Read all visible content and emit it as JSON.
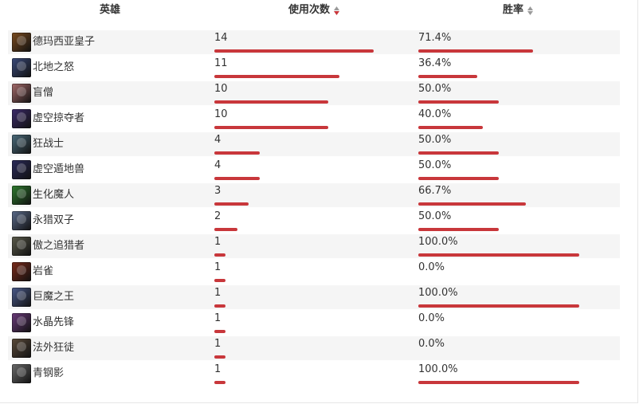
{
  "headers": {
    "hero": "英雄",
    "uses": "使用次数",
    "winrate": "胜率"
  },
  "sort": {
    "active_column": "uses",
    "active_color": "#c8373b",
    "inactive_color": "#9a9a9a"
  },
  "bar_color": "#c8373b",
  "scales": {
    "uses_max": 20,
    "winrate_max": 100
  },
  "rows": [
    {
      "hero": "德玛西亚皇子",
      "uses": "14",
      "winrate": "71.4%",
      "uses_value": 14,
      "winrate_value": 71.4,
      "avatar_icon": "jarvan-portrait-icon",
      "avatar_color": "#7a4a1e"
    },
    {
      "hero": "北地之怒",
      "uses": "11",
      "winrate": "36.4%",
      "uses_value": 11,
      "winrate_value": 36.4,
      "avatar_icon": "sejuani-portrait-icon",
      "avatar_color": "#3a4a7a"
    },
    {
      "hero": "盲僧",
      "uses": "10",
      "winrate": "50.0%",
      "uses_value": 10,
      "winrate_value": 50.0,
      "avatar_icon": "lee-sin-portrait-icon",
      "avatar_color": "#a46a6a"
    },
    {
      "hero": "虚空掠夺者",
      "uses": "10",
      "winrate": "40.0%",
      "uses_value": 10,
      "winrate_value": 40.0,
      "avatar_icon": "khazix-portrait-icon",
      "avatar_color": "#3c2a6a"
    },
    {
      "hero": "狂战士",
      "uses": "4",
      "winrate": "50.0%",
      "uses_value": 4,
      "winrate_value": 50.0,
      "avatar_icon": "olaf-portrait-icon",
      "avatar_color": "#4a6a7a"
    },
    {
      "hero": "虚空遁地兽",
      "uses": "4",
      "winrate": "50.0%",
      "uses_value": 4,
      "winrate_value": 50.0,
      "avatar_icon": "reksai-portrait-icon",
      "avatar_color": "#2a2a5a"
    },
    {
      "hero": "生化魔人",
      "uses": "3",
      "winrate": "66.7%",
      "uses_value": 3,
      "winrate_value": 66.7,
      "avatar_icon": "zac-portrait-icon",
      "avatar_color": "#2e7a2e"
    },
    {
      "hero": "永猎双子",
      "uses": "2",
      "winrate": "50.0%",
      "uses_value": 2,
      "winrate_value": 50.0,
      "avatar_icon": "kindred-portrait-icon",
      "avatar_color": "#5a6a8a"
    },
    {
      "hero": "傲之追猎者",
      "uses": "1",
      "winrate": "100.0%",
      "uses_value": 1,
      "winrate_value": 100.0,
      "avatar_icon": "rengar-portrait-icon",
      "avatar_color": "#5a5a4a"
    },
    {
      "hero": "岩雀",
      "uses": "1",
      "winrate": "0.0%",
      "uses_value": 1,
      "winrate_value": 0.0,
      "avatar_icon": "taliyah-portrait-icon",
      "avatar_color": "#7a2a1a"
    },
    {
      "hero": "巨魔之王",
      "uses": "1",
      "winrate": "100.0%",
      "uses_value": 1,
      "winrate_value": 100.0,
      "avatar_icon": "trundle-portrait-icon",
      "avatar_color": "#4a5a8a"
    },
    {
      "hero": "水晶先锋",
      "uses": "1",
      "winrate": "0.0%",
      "uses_value": 1,
      "winrate_value": 0.0,
      "avatar_icon": "skarner-portrait-icon",
      "avatar_color": "#6a3a7a"
    },
    {
      "hero": "法外狂徒",
      "uses": "1",
      "winrate": "0.0%",
      "uses_value": 1,
      "winrate_value": 0.0,
      "avatar_icon": "graves-portrait-icon",
      "avatar_color": "#5a4a3a"
    },
    {
      "hero": "青钢影",
      "uses": "1",
      "winrate": "100.0%",
      "uses_value": 1,
      "winrate_value": 100.0,
      "avatar_icon": "camille-portrait-icon",
      "avatar_color": "#6a6a6a"
    }
  ]
}
